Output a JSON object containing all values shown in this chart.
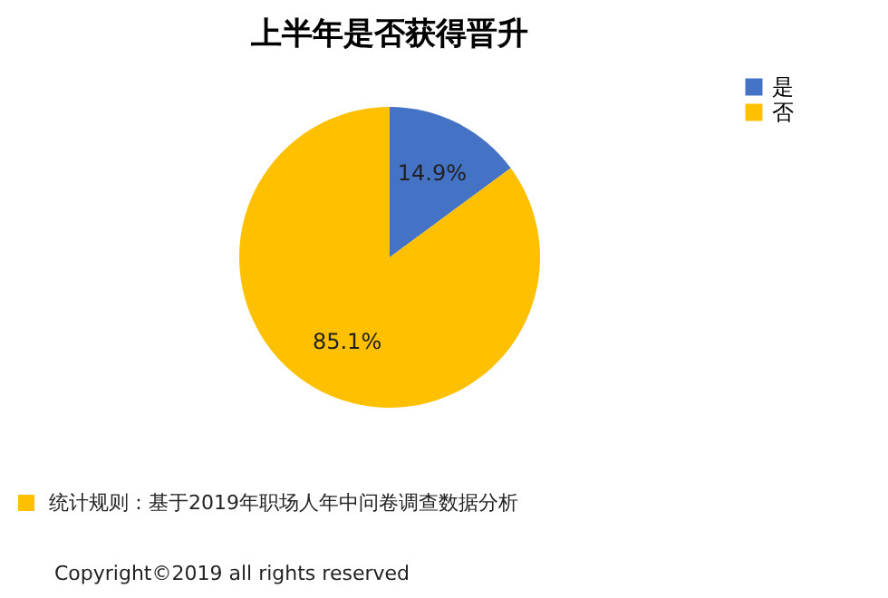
{
  "chart_data": {
    "type": "pie",
    "title": "上半年是否获得晋升",
    "categories": [
      "是",
      "否"
    ],
    "values": [
      14.9,
      85.1
    ],
    "colors": [
      "#4472c4",
      "#ffc000"
    ],
    "value_labels": [
      "14.9%",
      "85.1%"
    ],
    "legend": "right",
    "annotations": [
      "统计规则：基于2019年职场人年中问卷调查数据分析",
      "Copyright©2019 all rights reserved"
    ]
  }
}
